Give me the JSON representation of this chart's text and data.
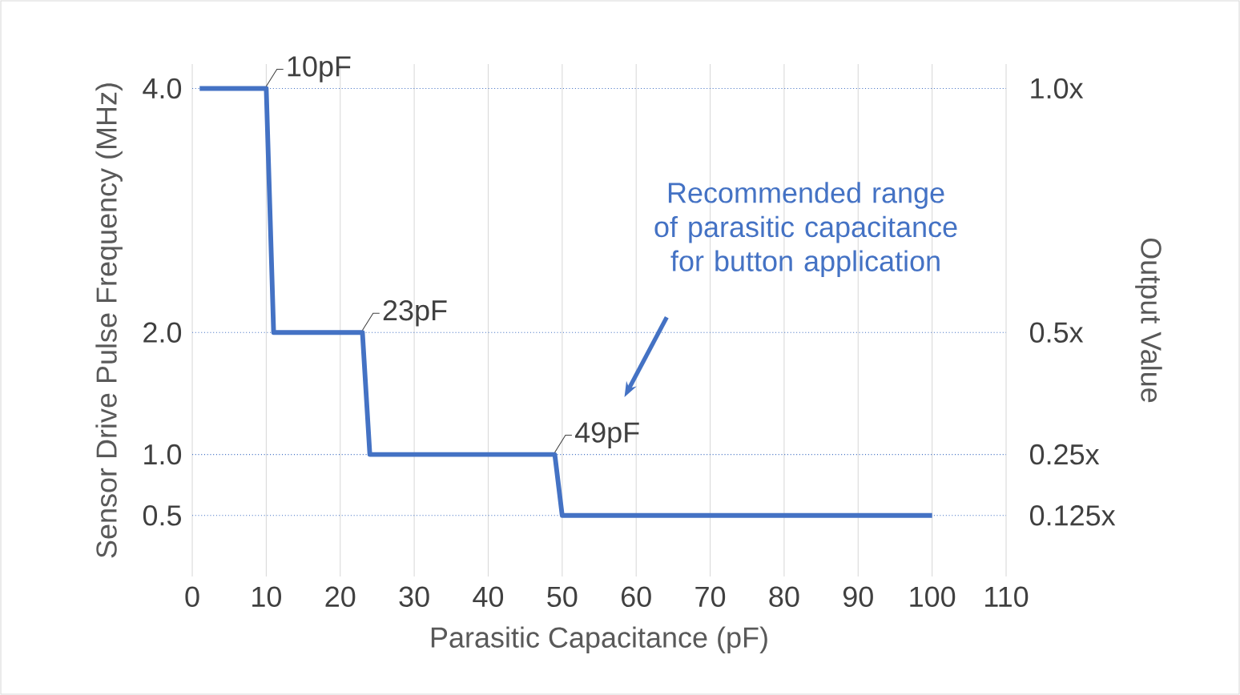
{
  "chart_data": {
    "type": "line",
    "xlabel": "Parasitic Capacitance (pF)",
    "ylabel": "Sensor Drive Pulse Frequency (MHz)",
    "y2label": "Output Value",
    "x": [
      1,
      10,
      11,
      23,
      24,
      49,
      50,
      100
    ],
    "series": [
      {
        "color": "#4472c4",
        "values": [
          4,
          4,
          2,
          2,
          1,
          1,
          0.5,
          0.5
        ]
      }
    ],
    "xlim": [
      0,
      110
    ],
    "xticks": [
      0,
      10,
      20,
      30,
      40,
      50,
      60,
      70,
      80,
      90,
      100,
      110
    ],
    "ylim": [
      0,
      4.2
    ],
    "yticks": [
      {
        "value": 4,
        "label": "4.0"
      },
      {
        "value": 2,
        "label": "2.0"
      },
      {
        "value": 1,
        "label": "1.0"
      },
      {
        "value": 0.5,
        "label": "0.5"
      }
    ],
    "y2lim": [
      0,
      1.05
    ],
    "y2ticks": [
      {
        "value": 1,
        "label": "1.0x"
      },
      {
        "value": 0.5,
        "label": "0.5x"
      },
      {
        "value": 0.25,
        "label": "0.25x"
      },
      {
        "value": 0.125,
        "label": "0.125x"
      }
    ],
    "grid": true,
    "marker": "none",
    "line_style": "solid",
    "annotations": [
      {
        "text": "10pF",
        "x": 10,
        "y": 4
      },
      {
        "text": "23pF",
        "x": 23,
        "y": 2
      },
      {
        "text": "49pF",
        "x": 49,
        "y": 1
      },
      "Recommended range of parasitic capacitance for button application"
    ]
  }
}
